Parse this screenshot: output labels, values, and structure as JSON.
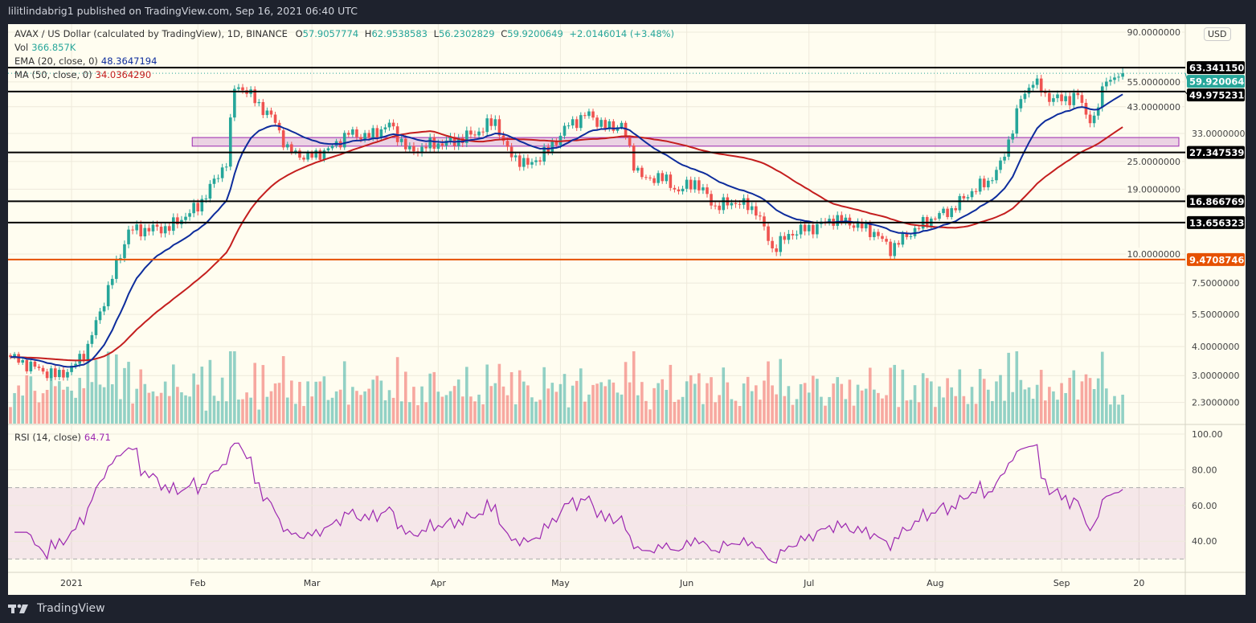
{
  "header": {
    "published": "lilitlindabrig1 published on TradingView.com, Sep 16, 2021 06:40 UTC"
  },
  "legend": {
    "symbol": "AVAX / US Dollar (calculated by TradingView), 1D, BINANCE",
    "o_label": "O",
    "o": "57.9057774",
    "h_label": "H",
    "h": "62.9538583",
    "l_label": "L",
    "l": "56.2302829",
    "c_label": "C",
    "c": "59.9200649",
    "change": "+2.0146014 (+3.48%)",
    "vol_label": "Vol",
    "vol": "366.857K",
    "ema_label": "EMA (20, close, 0)",
    "ema": "48.3647194",
    "ma_label": "MA (50, close, 0)",
    "ma": "34.0364290",
    "rsi_label": "RSI (14, close)",
    "rsi": "64.71"
  },
  "currency": "USD",
  "footer": {
    "brand": "TradingView"
  },
  "colors": {
    "up": "#26a69a",
    "down": "#ef5350",
    "ema": "#0d2c9c",
    "ma": "#c41e1e",
    "rsi": "#9c27b0",
    "orange": "#e65100",
    "zone": "#9c27b0"
  },
  "chart_data": {
    "type": "candlestick",
    "scale": "log",
    "start_date": "2020-12-17",
    "end_date": "2021-09-16",
    "x_ticks": [
      "2021",
      "Feb",
      "Mar",
      "Apr",
      "May",
      "Jun",
      "Jul",
      "Aug",
      "Sep",
      "20"
    ],
    "y_ticks": [
      "90.0000000",
      "55.0000000",
      "43.0000000",
      "33.0000000",
      "25.0000000",
      "19.0000000",
      "10.0000000",
      "7.5000000",
      "5.5000000",
      "4.0000000",
      "3.0000000",
      "2.3000000"
    ],
    "rsi_ticks": [
      "100.00",
      "80.00",
      "60.00",
      "40.00"
    ],
    "rsi_band": [
      30,
      70
    ],
    "approx_closes": [
      [
        "2020-12-17",
        3.6
      ],
      [
        "2020-12-22",
        3.3
      ],
      [
        "2020-12-28",
        3.0
      ],
      [
        "2021-01-01",
        3.2
      ],
      [
        "2021-01-05",
        4.0
      ],
      [
        "2021-01-10",
        7.1
      ],
      [
        "2021-01-15",
        12.6
      ],
      [
        "2021-01-25",
        13
      ],
      [
        "2021-02-01",
        16
      ],
      [
        "2021-02-05",
        20.5
      ],
      [
        "2021-02-08",
        25
      ],
      [
        "2021-02-10",
        52
      ],
      [
        "2021-02-12",
        52
      ],
      [
        "2021-02-16",
        44
      ],
      [
        "2021-02-20",
        37
      ],
      [
        "2021-02-23",
        28
      ],
      [
        "2021-02-28",
        26
      ],
      [
        "2021-03-05",
        28
      ],
      [
        "2021-03-10",
        33
      ],
      [
        "2021-03-15",
        32
      ],
      [
        "2021-03-20",
        36
      ],
      [
        "2021-03-25",
        27.5
      ],
      [
        "2021-03-30",
        29.5
      ],
      [
        "2021-04-05",
        30.6
      ],
      [
        "2021-04-10",
        33
      ],
      [
        "2021-04-15",
        37.5
      ],
      [
        "2021-04-18",
        27.5
      ],
      [
        "2021-04-23",
        24
      ],
      [
        "2021-04-28",
        28
      ],
      [
        "2021-05-03",
        36
      ],
      [
        "2021-05-08",
        40
      ],
      [
        "2021-05-12",
        35
      ],
      [
        "2021-05-16",
        36
      ],
      [
        "2021-05-19",
        24.5
      ],
      [
        "2021-05-22",
        20.5
      ],
      [
        "2021-05-25",
        21.8
      ],
      [
        "2021-05-30",
        18.7
      ],
      [
        "2021-06-03",
        20.5
      ],
      [
        "2021-06-08",
        16
      ],
      [
        "2021-06-13",
        16.8
      ],
      [
        "2021-06-18",
        15.5
      ],
      [
        "2021-06-22",
        10.5
      ],
      [
        "2021-06-27",
        12.4
      ],
      [
        "2021-07-02",
        13
      ],
      [
        "2021-07-07",
        14.2
      ],
      [
        "2021-07-12",
        13.5
      ],
      [
        "2021-07-17",
        12.4
      ],
      [
        "2021-07-21",
        10.5
      ],
      [
        "2021-07-26",
        12.4
      ],
      [
        "2021-07-31",
        14.2
      ],
      [
        "2021-08-05",
        15.5
      ],
      [
        "2021-08-10",
        18.7
      ],
      [
        "2021-08-14",
        20.5
      ],
      [
        "2021-08-17",
        24
      ],
      [
        "2021-08-19",
        30.6
      ],
      [
        "2021-08-22",
        46
      ],
      [
        "2021-08-25",
        56
      ],
      [
        "2021-08-28",
        48
      ],
      [
        "2021-09-01",
        46
      ],
      [
        "2021-09-05",
        48
      ],
      [
        "2021-09-07",
        40
      ],
      [
        "2021-09-09",
        37.5
      ],
      [
        "2021-09-12",
        58
      ],
      [
        "2021-09-14",
        56
      ],
      [
        "2021-09-16",
        59.92
      ]
    ],
    "last_candle": {
      "open": 57.9057774,
      "high": 62.9538583,
      "low": 56.2302829,
      "close": 59.9200649
    },
    "levels": [
      {
        "value": 63.3411503,
        "label": "63.3411503",
        "color": "#000000"
      },
      {
        "value": 49.9752314,
        "label": "49.9752314",
        "color": "#000000"
      },
      {
        "value": 27.3475396,
        "label": "27.3475396",
        "color": "#000000"
      },
      {
        "value": 16.8667693,
        "label": "16.8667693",
        "color": "#000000"
      },
      {
        "value": 13.6563239,
        "label": "13.6563239",
        "color": "#000000"
      },
      {
        "value": 9.4708746,
        "label": "9.4708746",
        "color": "#e65100"
      }
    ],
    "current_price": {
      "value": 59.9200649,
      "label": "59.9200649",
      "color": "#26a69a"
    },
    "zone": {
      "from_date": "2021-02-01",
      "low": 29.1,
      "high": 31.7
    }
  }
}
